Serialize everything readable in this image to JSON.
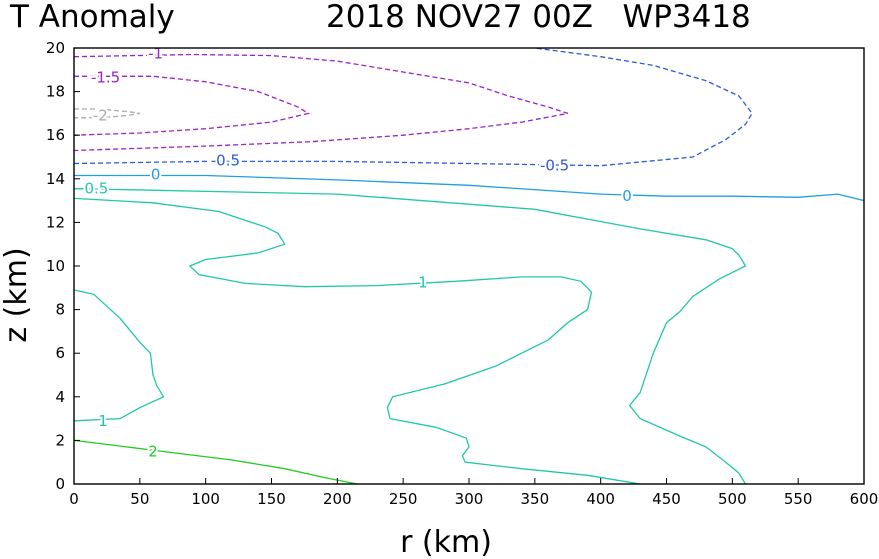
{
  "chart_data": {
    "type": "contour",
    "title_left": "T Anomaly",
    "title_right": "2018 NOV27 00Z   WP3418",
    "xlabel": "r (km)",
    "ylabel": "z (km)",
    "xlim": [
      0,
      600
    ],
    "ylim": [
      0,
      20
    ],
    "xticks": [
      0,
      50,
      100,
      150,
      200,
      250,
      300,
      350,
      400,
      450,
      500,
      550,
      600
    ],
    "yticks": [
      0,
      2,
      4,
      6,
      8,
      10,
      12,
      14,
      16,
      18,
      20
    ],
    "contours": [
      {
        "level": "2",
        "color": "#22cc22",
        "dashed": false,
        "lines": [
          [
            [
              0,
              2.0
            ],
            [
              40,
              1.7
            ],
            [
              80,
              1.4
            ],
            [
              120,
              1.1
            ],
            [
              160,
              0.7
            ],
            [
              190,
              0.3
            ],
            [
              215,
              0.0
            ]
          ]
        ],
        "labels": [
          {
            "text": "2",
            "x": 60,
            "y": 1.5
          }
        ]
      },
      {
        "level": "1",
        "color": "#20c8a8",
        "dashed": false,
        "lines": [
          [
            [
              0,
              8.9
            ],
            [
              15,
              8.7
            ],
            [
              35,
              7.6
            ],
            [
              50,
              6.5
            ],
            [
              58,
              6.0
            ],
            [
              60,
              5.0
            ],
            [
              63,
              4.5
            ],
            [
              68,
              4.0
            ],
            [
              50,
              3.5
            ],
            [
              35,
              3.0
            ],
            [
              0,
              2.9
            ]
          ],
          [
            [
              0,
              13.1
            ],
            [
              60,
              12.9
            ],
            [
              110,
              12.5
            ],
            [
              145,
              11.8
            ],
            [
              155,
              11.5
            ],
            [
              160,
              11.0
            ],
            [
              140,
              10.6
            ],
            [
              100,
              10.3
            ],
            [
              88,
              10.0
            ],
            [
              95,
              9.6
            ],
            [
              130,
              9.2
            ],
            [
              175,
              9.05
            ],
            [
              230,
              9.1
            ],
            [
              290,
              9.3
            ],
            [
              340,
              9.5
            ],
            [
              370,
              9.5
            ],
            [
              385,
              9.3
            ],
            [
              393,
              8.8
            ],
            [
              390,
              8.0
            ],
            [
              375,
              7.4
            ],
            [
              360,
              6.6
            ],
            [
              340,
              6.0
            ],
            [
              320,
              5.4
            ],
            [
              282,
              4.6
            ],
            [
              242,
              4.0
            ],
            [
              238,
              3.5
            ],
            [
              240,
              3.0
            ],
            [
              275,
              2.6
            ],
            [
              298,
              2.1
            ],
            [
              300,
              1.7
            ],
            [
              295,
              1.3
            ],
            [
              297,
              1.0
            ],
            [
              340,
              0.7
            ],
            [
              390,
              0.4
            ],
            [
              430,
              0.0
            ]
          ],
          [
            [
              0,
              13.55
            ],
            [
              200,
              13.3
            ],
            [
              350,
              12.6
            ],
            [
              430,
              11.7
            ],
            [
              480,
              11.2
            ],
            [
              500,
              10.8
            ],
            [
              505,
              10.5
            ],
            [
              510,
              10.0
            ],
            [
              490,
              9.4
            ],
            [
              470,
              8.6
            ],
            [
              460,
              7.9
            ],
            [
              450,
              7.4
            ],
            [
              440,
              6.0
            ],
            [
              430,
              4.2
            ],
            [
              422,
              3.6
            ],
            [
              430,
              3.0
            ],
            [
              460,
              2.2
            ],
            [
              480,
              1.7
            ],
            [
              495,
              1.0
            ],
            [
              505,
              0.5
            ],
            [
              510,
              0.0
            ]
          ]
        ],
        "labels": [
          {
            "text": "1",
            "x": 22,
            "y": 2.9
          },
          {
            "text": "1",
            "x": 265,
            "y": 9.25
          }
        ]
      },
      {
        "level": "0.5",
        "color": "#20c8a8",
        "dashed": false,
        "lines": [
          [
            [
              0,
              13.55
            ],
            [
              5,
              13.55
            ],
            [
              15,
              13.55
            ]
          ]
        ],
        "labels": [
          {
            "text": "0.5",
            "x": 17,
            "y": 13.55
          }
        ]
      },
      {
        "level": "0",
        "color": "#1f9fe0",
        "dashed": false,
        "lines": [
          [
            [
              0,
              14.15
            ],
            [
              100,
              14.15
            ],
            [
              200,
              13.95
            ],
            [
              300,
              13.7
            ],
            [
              400,
              13.3
            ],
            [
              450,
              13.2
            ],
            [
              500,
              13.2
            ],
            [
              550,
              13.15
            ],
            [
              580,
              13.3
            ],
            [
              600,
              13.0
            ]
          ]
        ],
        "labels": [
          {
            "text": "0",
            "x": 62,
            "y": 14.2
          },
          {
            "text": "0",
            "x": 420,
            "y": 13.2
          }
        ]
      },
      {
        "level": "-0.5",
        "color": "#2a5ad8",
        "dashed": true,
        "lines": [
          [
            [
              0,
              14.7
            ],
            [
              100,
              14.8
            ],
            [
              200,
              14.8
            ],
            [
              300,
              14.7
            ],
            [
              400,
              14.6
            ],
            [
              470,
              15.0
            ],
            [
              495,
              15.8
            ],
            [
              510,
              16.5
            ],
            [
              515,
              17.0
            ],
            [
              505,
              17.8
            ],
            [
              480,
              18.5
            ],
            [
              440,
              19.2
            ],
            [
              400,
              19.6
            ],
            [
              350,
              20.0
            ]
          ]
        ],
        "labels": [
          {
            "text": "-0.5",
            "x": 115,
            "y": 14.85
          },
          {
            "text": "-0.5",
            "x": 365,
            "y": 14.6
          }
        ]
      },
      {
        "level": "-1",
        "color": "#9922cc",
        "dashed": true,
        "lines": [
          [
            [
              0,
              19.6
            ],
            [
              90,
              19.7
            ],
            [
              150,
              19.65
            ],
            [
              200,
              19.4
            ],
            [
              260,
              18.8
            ],
            [
              300,
              18.4
            ],
            [
              330,
              17.8
            ],
            [
              360,
              17.3
            ],
            [
              375,
              17.0
            ],
            [
              340,
              16.6
            ],
            [
              300,
              16.3
            ],
            [
              250,
              16.0
            ],
            [
              180,
              15.7
            ],
            [
              100,
              15.5
            ],
            [
              0,
              15.3
            ]
          ]
        ],
        "labels": [
          {
            "text": "-1",
            "x": 62,
            "y": 19.75
          }
        ]
      },
      {
        "level": "-1.5",
        "color": "#9922cc",
        "dashed": true,
        "lines": [
          [
            [
              0,
              18.7
            ],
            [
              60,
              18.7
            ],
            [
              100,
              18.45
            ],
            [
              140,
              18.0
            ],
            [
              170,
              17.3
            ],
            [
              178,
              17.0
            ],
            [
              150,
              16.6
            ],
            [
              100,
              16.3
            ],
            [
              50,
              16.1
            ],
            [
              0,
              16.0
            ]
          ]
        ],
        "labels": [
          {
            "text": "-1.5",
            "x": 24,
            "y": 18.65
          }
        ]
      },
      {
        "level": "-2",
        "color": "#aaaaaa",
        "dashed": true,
        "lines": [
          [
            [
              0,
              17.2
            ],
            [
              20,
              17.2
            ],
            [
              45,
              17.05
            ],
            [
              50,
              17.0
            ],
            [
              40,
              16.9
            ],
            [
              20,
              16.8
            ],
            [
              0,
              16.8
            ]
          ]
        ],
        "labels": [
          {
            "text": "-2",
            "x": 20,
            "y": 16.9
          }
        ]
      }
    ]
  }
}
